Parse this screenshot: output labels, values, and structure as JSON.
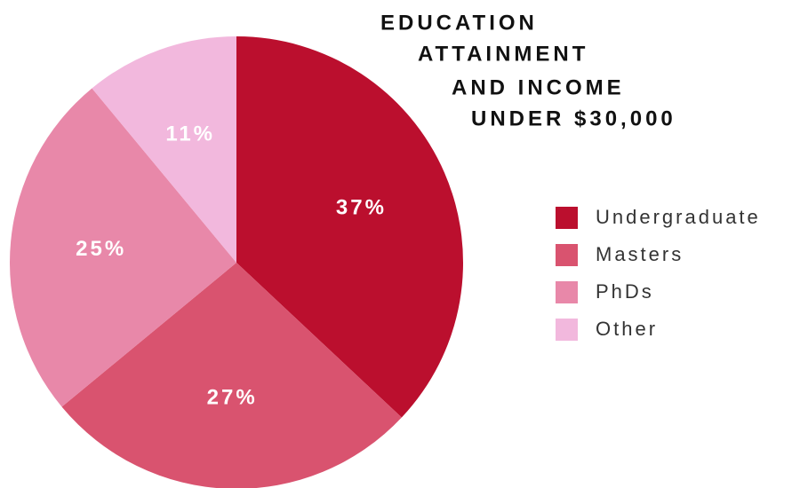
{
  "chart_data": {
    "type": "pie",
    "title": [
      "EDUCATION",
      "ATTAINMENT",
      "AND INCOME",
      "UNDER $30,000"
    ],
    "categories": [
      "Undergraduate",
      "Masters",
      "PhDs",
      "Other"
    ],
    "values": [
      37,
      27,
      25,
      11
    ],
    "value_labels": [
      "37%",
      "27%",
      "25%",
      "11%"
    ],
    "colors": [
      "#bb0f2e",
      "#d9536f",
      "#e888a9",
      "#f2b8dd"
    ],
    "legend": "right"
  }
}
